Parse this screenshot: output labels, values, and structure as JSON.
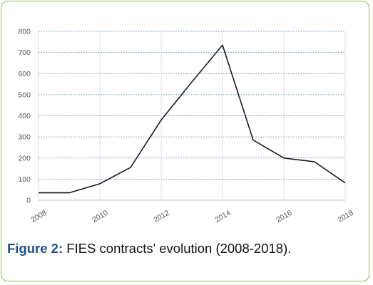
{
  "chart_data": {
    "type": "line",
    "x": [
      2008,
      2009,
      2010,
      2011,
      2012,
      2013,
      2014,
      2015,
      2016,
      2017,
      2018
    ],
    "series": [
      {
        "values": [
          35,
          35,
          78,
          155,
          380,
          560,
          735,
          285,
          200,
          182,
          82
        ],
        "color": "#1a1a1a"
      }
    ],
    "xticks": [
      "2008",
      "2010",
      "2012",
      "2014",
      "2016",
      "2018"
    ],
    "yticks": [
      "0",
      "100",
      "200",
      "300",
      "400",
      "500",
      "600",
      "700",
      "800"
    ],
    "xlim": [
      2008,
      2018
    ],
    "ylim": [
      0,
      800
    ],
    "grid": true,
    "grid_color": "#4472c4"
  },
  "caption": {
    "label": "Figure 2:",
    "text": " FIES contracts' evolution (2008-2018)."
  },
  "colors": {
    "frame_border": "#8cc152",
    "caption_label": "#1f4e8c"
  }
}
